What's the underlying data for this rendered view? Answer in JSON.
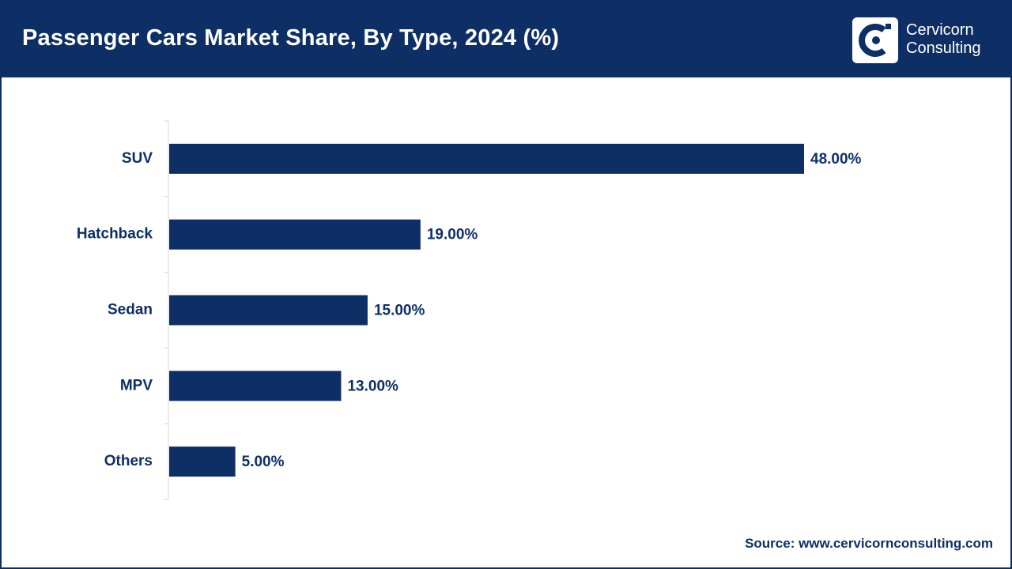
{
  "header": {
    "title": "Passenger Cars Market Share, By Type, 2024 (%)"
  },
  "logo": {
    "line1": "Cervicorn",
    "line2": "Consulting"
  },
  "source": "Source: www.cervicornconsulting.com",
  "colors": {
    "brand": "#0e2f66",
    "bar": "#0e2f66",
    "axis": "#d9d9d9"
  },
  "chart_data": {
    "type": "bar",
    "orientation": "horizontal",
    "categories": [
      "SUV",
      "Hatchback",
      "Sedan",
      "MPV",
      "Others"
    ],
    "values": [
      48.0,
      19.0,
      15.0,
      13.0,
      5.0
    ],
    "data_labels": [
      "48.00%",
      "19.00%",
      "15.00%",
      "13.00%",
      "5.00%"
    ],
    "unit": "%",
    "xlim": [
      0,
      48
    ],
    "grid": false,
    "legend": "none"
  }
}
